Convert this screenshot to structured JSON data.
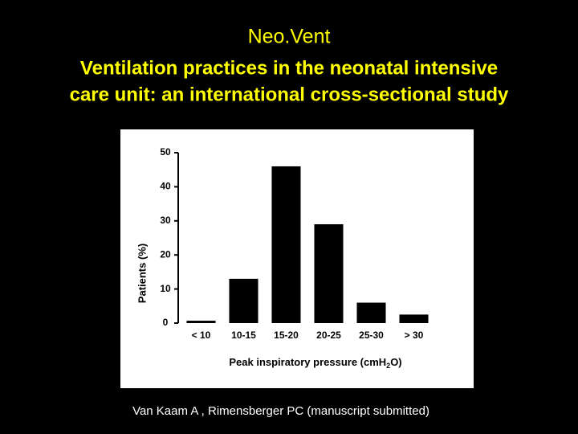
{
  "title": "Neo.Vent",
  "subtitle": [
    "Ventilation practices in the neonatal intensive",
    "care unit: an international cross-sectional study"
  ],
  "chart_data": {
    "type": "bar",
    "y_label": "Patients (%)",
    "x_label": [
      "Peak inspiratory pressure (cmH",
      "2",
      "O)"
    ],
    "categories": [
      "< 10",
      "10-15",
      "15-20",
      "20-25",
      "25-30",
      "> 30"
    ],
    "values": [
      0.7,
      13,
      46,
      29,
      6,
      2.5
    ],
    "color": "#000000",
    "ylim": [
      0,
      50
    ],
    "yticks": [
      0,
      10,
      20,
      30,
      40,
      50
    ],
    "grid": false
  },
  "citation": "Van Kaam A , Rimensberger PC  (manuscript submitted)"
}
